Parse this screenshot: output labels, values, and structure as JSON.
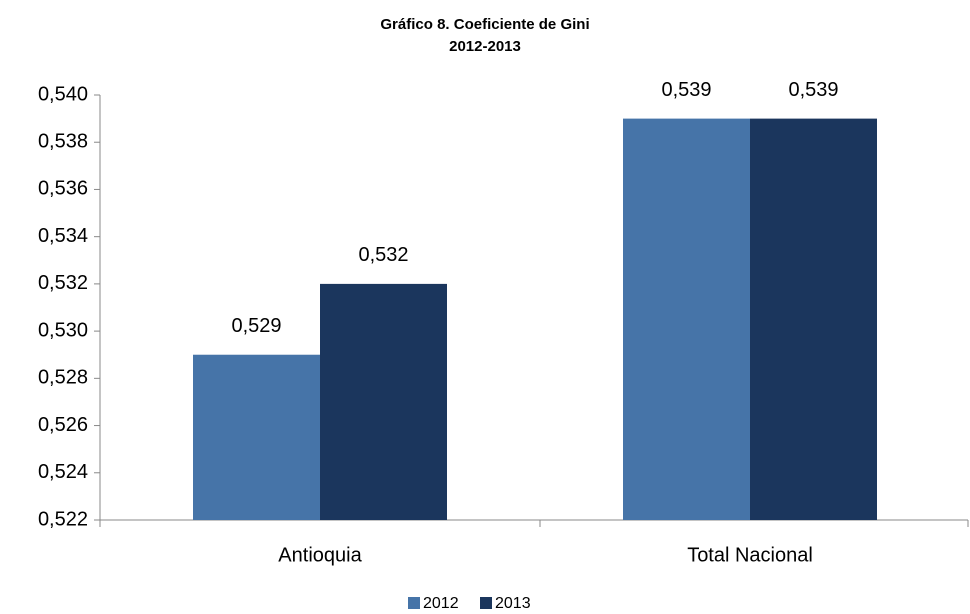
{
  "chart_data": {
    "type": "bar",
    "title": "Gráfico 8. Coeficiente de Gini",
    "subtitle": "2012-2013",
    "categories": [
      "Antioquia",
      "Total Nacional"
    ],
    "series": [
      {
        "name": "2012",
        "color": "#4674a8",
        "values": [
          0.529,
          0.539
        ],
        "value_labels": [
          "0,529",
          "0,539"
        ]
      },
      {
        "name": "2013",
        "color": "#1b365d",
        "values": [
          0.532,
          0.539
        ],
        "value_labels": [
          "0,532",
          "0,539"
        ]
      }
    ],
    "ylim": [
      0.522,
      0.54
    ],
    "yticks": [
      {
        "value": 0.522,
        "label": "0,522"
      },
      {
        "value": 0.524,
        "label": "0,524"
      },
      {
        "value": 0.526,
        "label": "0,526"
      },
      {
        "value": 0.528,
        "label": "0,528"
      },
      {
        "value": 0.53,
        "label": "0,530"
      },
      {
        "value": 0.532,
        "label": "0,532"
      },
      {
        "value": 0.534,
        "label": "0,534"
      },
      {
        "value": 0.536,
        "label": "0,536"
      },
      {
        "value": 0.538,
        "label": "0,538"
      },
      {
        "value": 0.54,
        "label": "0,540"
      }
    ],
    "grid": false,
    "legend": "bottom"
  }
}
